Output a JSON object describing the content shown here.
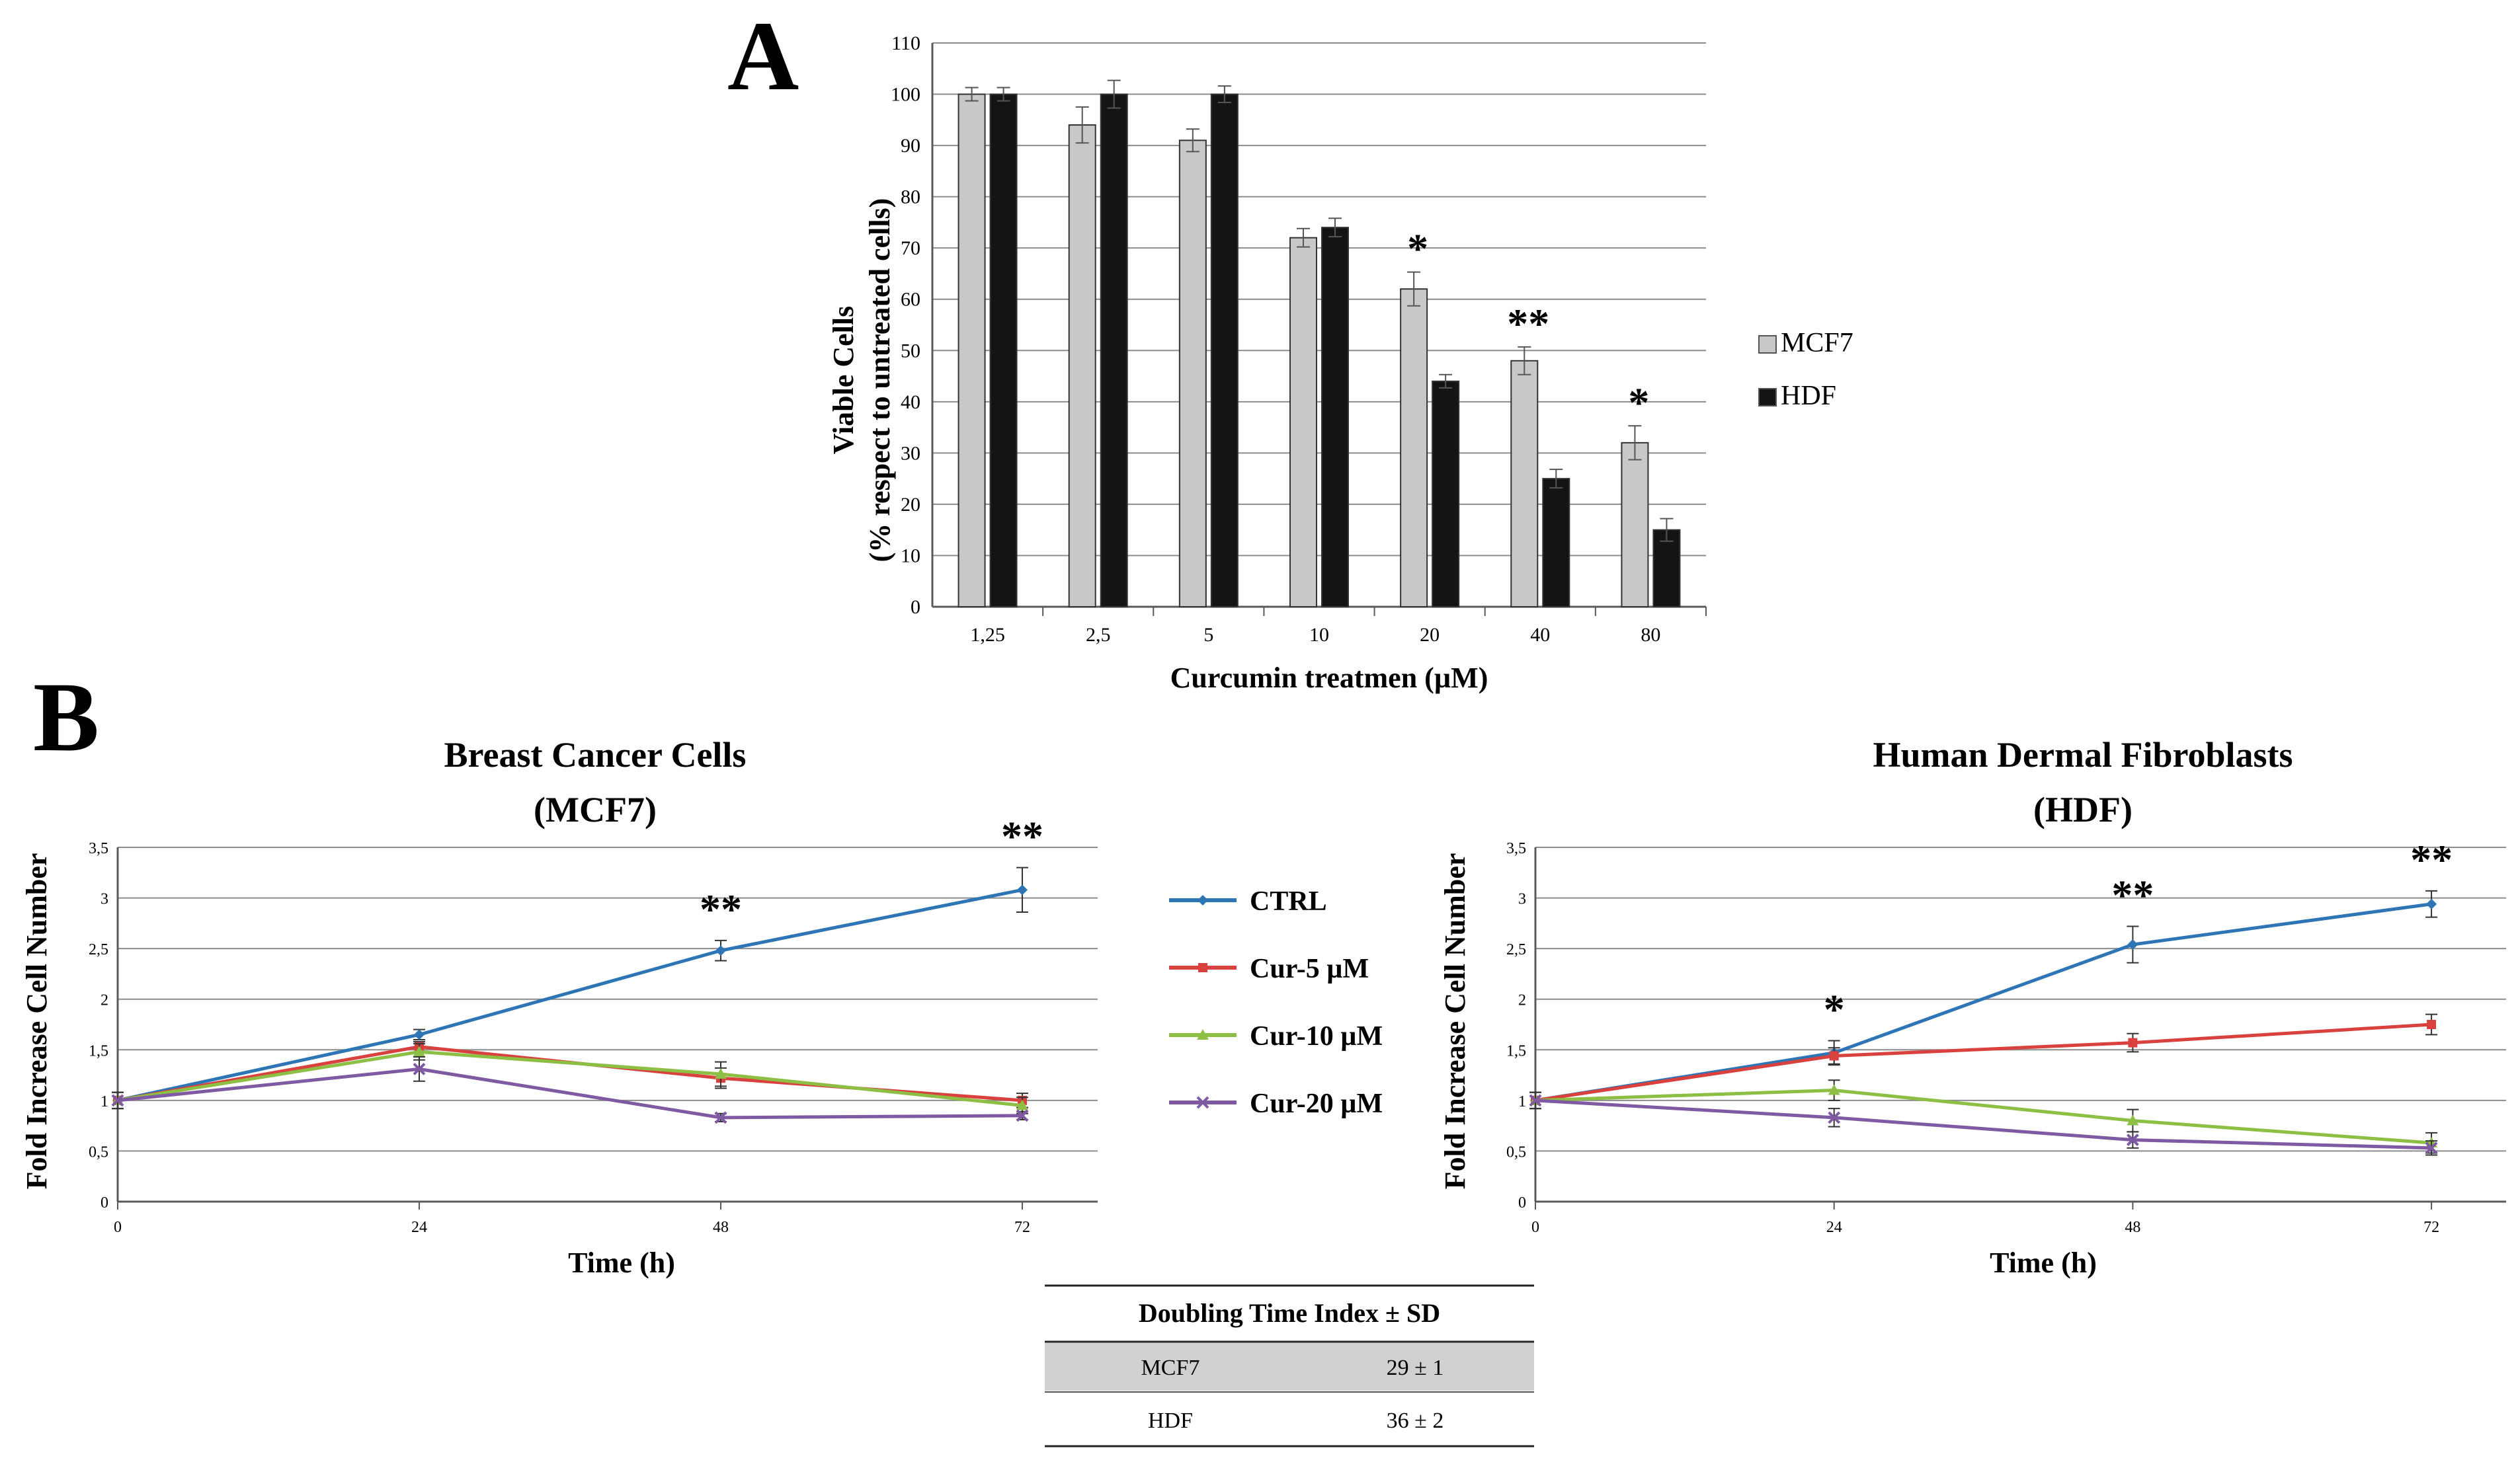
{
  "panels": {
    "a_letter": "A",
    "b_letter": "B"
  },
  "chart_data": [
    {
      "type": "bar",
      "title": "",
      "xlabel": "Curcumin treatmen  (µM)",
      "ylabel_line1": "Viable Cells",
      "ylabel_line2": "(% respect to untreated cells)",
      "categories": [
        "1,25",
        "2,5",
        "5",
        "10",
        "20",
        "40",
        "80"
      ],
      "ylim": [
        0,
        110
      ],
      "yticks": [
        0,
        10,
        20,
        30,
        40,
        50,
        60,
        70,
        80,
        90,
        100,
        110
      ],
      "grid": true,
      "legend_position": "right",
      "series": [
        {
          "name": "MCF7",
          "color": "#c8c8c8",
          "values": [
            100,
            94,
            91,
            72,
            62,
            48,
            32
          ],
          "errors": [
            1.3,
            3.5,
            2.2,
            1.8,
            3.3,
            2.7,
            3.3
          ]
        },
        {
          "name": "HDF",
          "color": "#141414",
          "values": [
            100,
            100,
            100,
            74,
            44,
            25,
            15
          ],
          "errors": [
            1.3,
            2.7,
            1.6,
            1.8,
            1.3,
            1.8,
            2.2
          ]
        }
      ],
      "annotations": [
        {
          "category": "20",
          "text": "*"
        },
        {
          "category": "40",
          "text": "**"
        },
        {
          "category": "80",
          "text": "*"
        }
      ]
    },
    {
      "type": "line",
      "title_line1": "Breast Cancer Cells",
      "title_line2": "(MCF7)",
      "xlabel": "Time (h)",
      "ylabel": "Fold Increase Cell Number",
      "x": [
        0,
        24,
        48,
        72
      ],
      "xlim": [
        0,
        78
      ],
      "ylim": [
        0,
        3.5
      ],
      "xticks": [
        "0",
        "24",
        "48",
        "72"
      ],
      "yticks": [
        "0",
        "0,5",
        "1",
        "1,5",
        "2",
        "2,5",
        "3",
        "3,5"
      ],
      "grid": true,
      "series": [
        {
          "name": "CTRL",
          "color": "#2e75b6",
          "values": [
            1,
            1.65,
            2.48,
            3.08
          ],
          "errors": [
            0.08,
            0.05,
            0.1,
            0.22
          ]
        },
        {
          "name": "Cur-5  µM",
          "color": "#d9413e",
          "values": [
            1,
            1.53,
            1.22,
            1.0
          ],
          "errors": [
            0.08,
            0.05,
            0.1,
            0.07
          ]
        },
        {
          "name": "Cur-10  µM",
          "color": "#8cbf44",
          "values": [
            1,
            1.48,
            1.26,
            0.95
          ],
          "errors": [
            0.08,
            0.08,
            0.12,
            0.08
          ]
        },
        {
          "name": "Cur-20  µM",
          "color": "#7f5aa2",
          "values": [
            1,
            1.31,
            0.83,
            0.85
          ],
          "errors": [
            0.08,
            0.12,
            0.04,
            0.04
          ]
        }
      ],
      "annotations": [
        {
          "x": 48,
          "text": "**"
        },
        {
          "x": 72,
          "text": "**"
        }
      ]
    },
    {
      "type": "line",
      "title_line1": "Human Dermal Fibroblasts",
      "title_line2": "(HDF)",
      "xlabel": "Time (h)",
      "ylabel": "Fold Increase Cell Number",
      "x": [
        0,
        24,
        48,
        72
      ],
      "xlim": [
        0,
        78
      ],
      "ylim": [
        0,
        3.5
      ],
      "xticks": [
        "0",
        "24",
        "48",
        "72"
      ],
      "yticks": [
        "0",
        "0,5",
        "1",
        "1,5",
        "2",
        "2,5",
        "3",
        "3,5"
      ],
      "grid": true,
      "series": [
        {
          "name": "CTRL",
          "color": "#2e75b6",
          "values": [
            1,
            1.47,
            2.54,
            2.94
          ],
          "errors": [
            0.08,
            0.12,
            0.18,
            0.13
          ]
        },
        {
          "name": "Cur-5  µM",
          "color": "#d9413e",
          "values": [
            1,
            1.44,
            1.57,
            1.75
          ],
          "errors": [
            0.08,
            0.08,
            0.09,
            0.1
          ]
        },
        {
          "name": "Cur-10  µM",
          "color": "#8cbf44",
          "values": [
            1,
            1.1,
            0.8,
            0.58
          ],
          "errors": [
            0.08,
            0.1,
            0.11,
            0.1
          ]
        },
        {
          "name": "Cur-20  µM",
          "color": "#7f5aa2",
          "values": [
            1,
            0.83,
            0.61,
            0.53
          ],
          "errors": [
            0.08,
            0.09,
            0.08,
            0.07
          ]
        }
      ],
      "annotations": [
        {
          "x": 24,
          "text": "*"
        },
        {
          "x": 48,
          "text": "**"
        },
        {
          "x": 72,
          "text": "**"
        }
      ]
    }
  ],
  "legend_b": {
    "items": [
      "CTRL",
      "Cur-5  µM",
      "Cur-10  µM",
      "Cur-20  µM"
    ]
  },
  "doubling_table": {
    "header": "Doubling Time Index ± SD",
    "rows": [
      {
        "label": "MCF7",
        "value": "29 ± 1"
      },
      {
        "label": "HDF",
        "value": "36 ± 2"
      }
    ]
  },
  "colors": {
    "gridline": "#8c8c8c",
    "axis": "#5a5a5a",
    "table_shade": "#d0d0d0"
  }
}
